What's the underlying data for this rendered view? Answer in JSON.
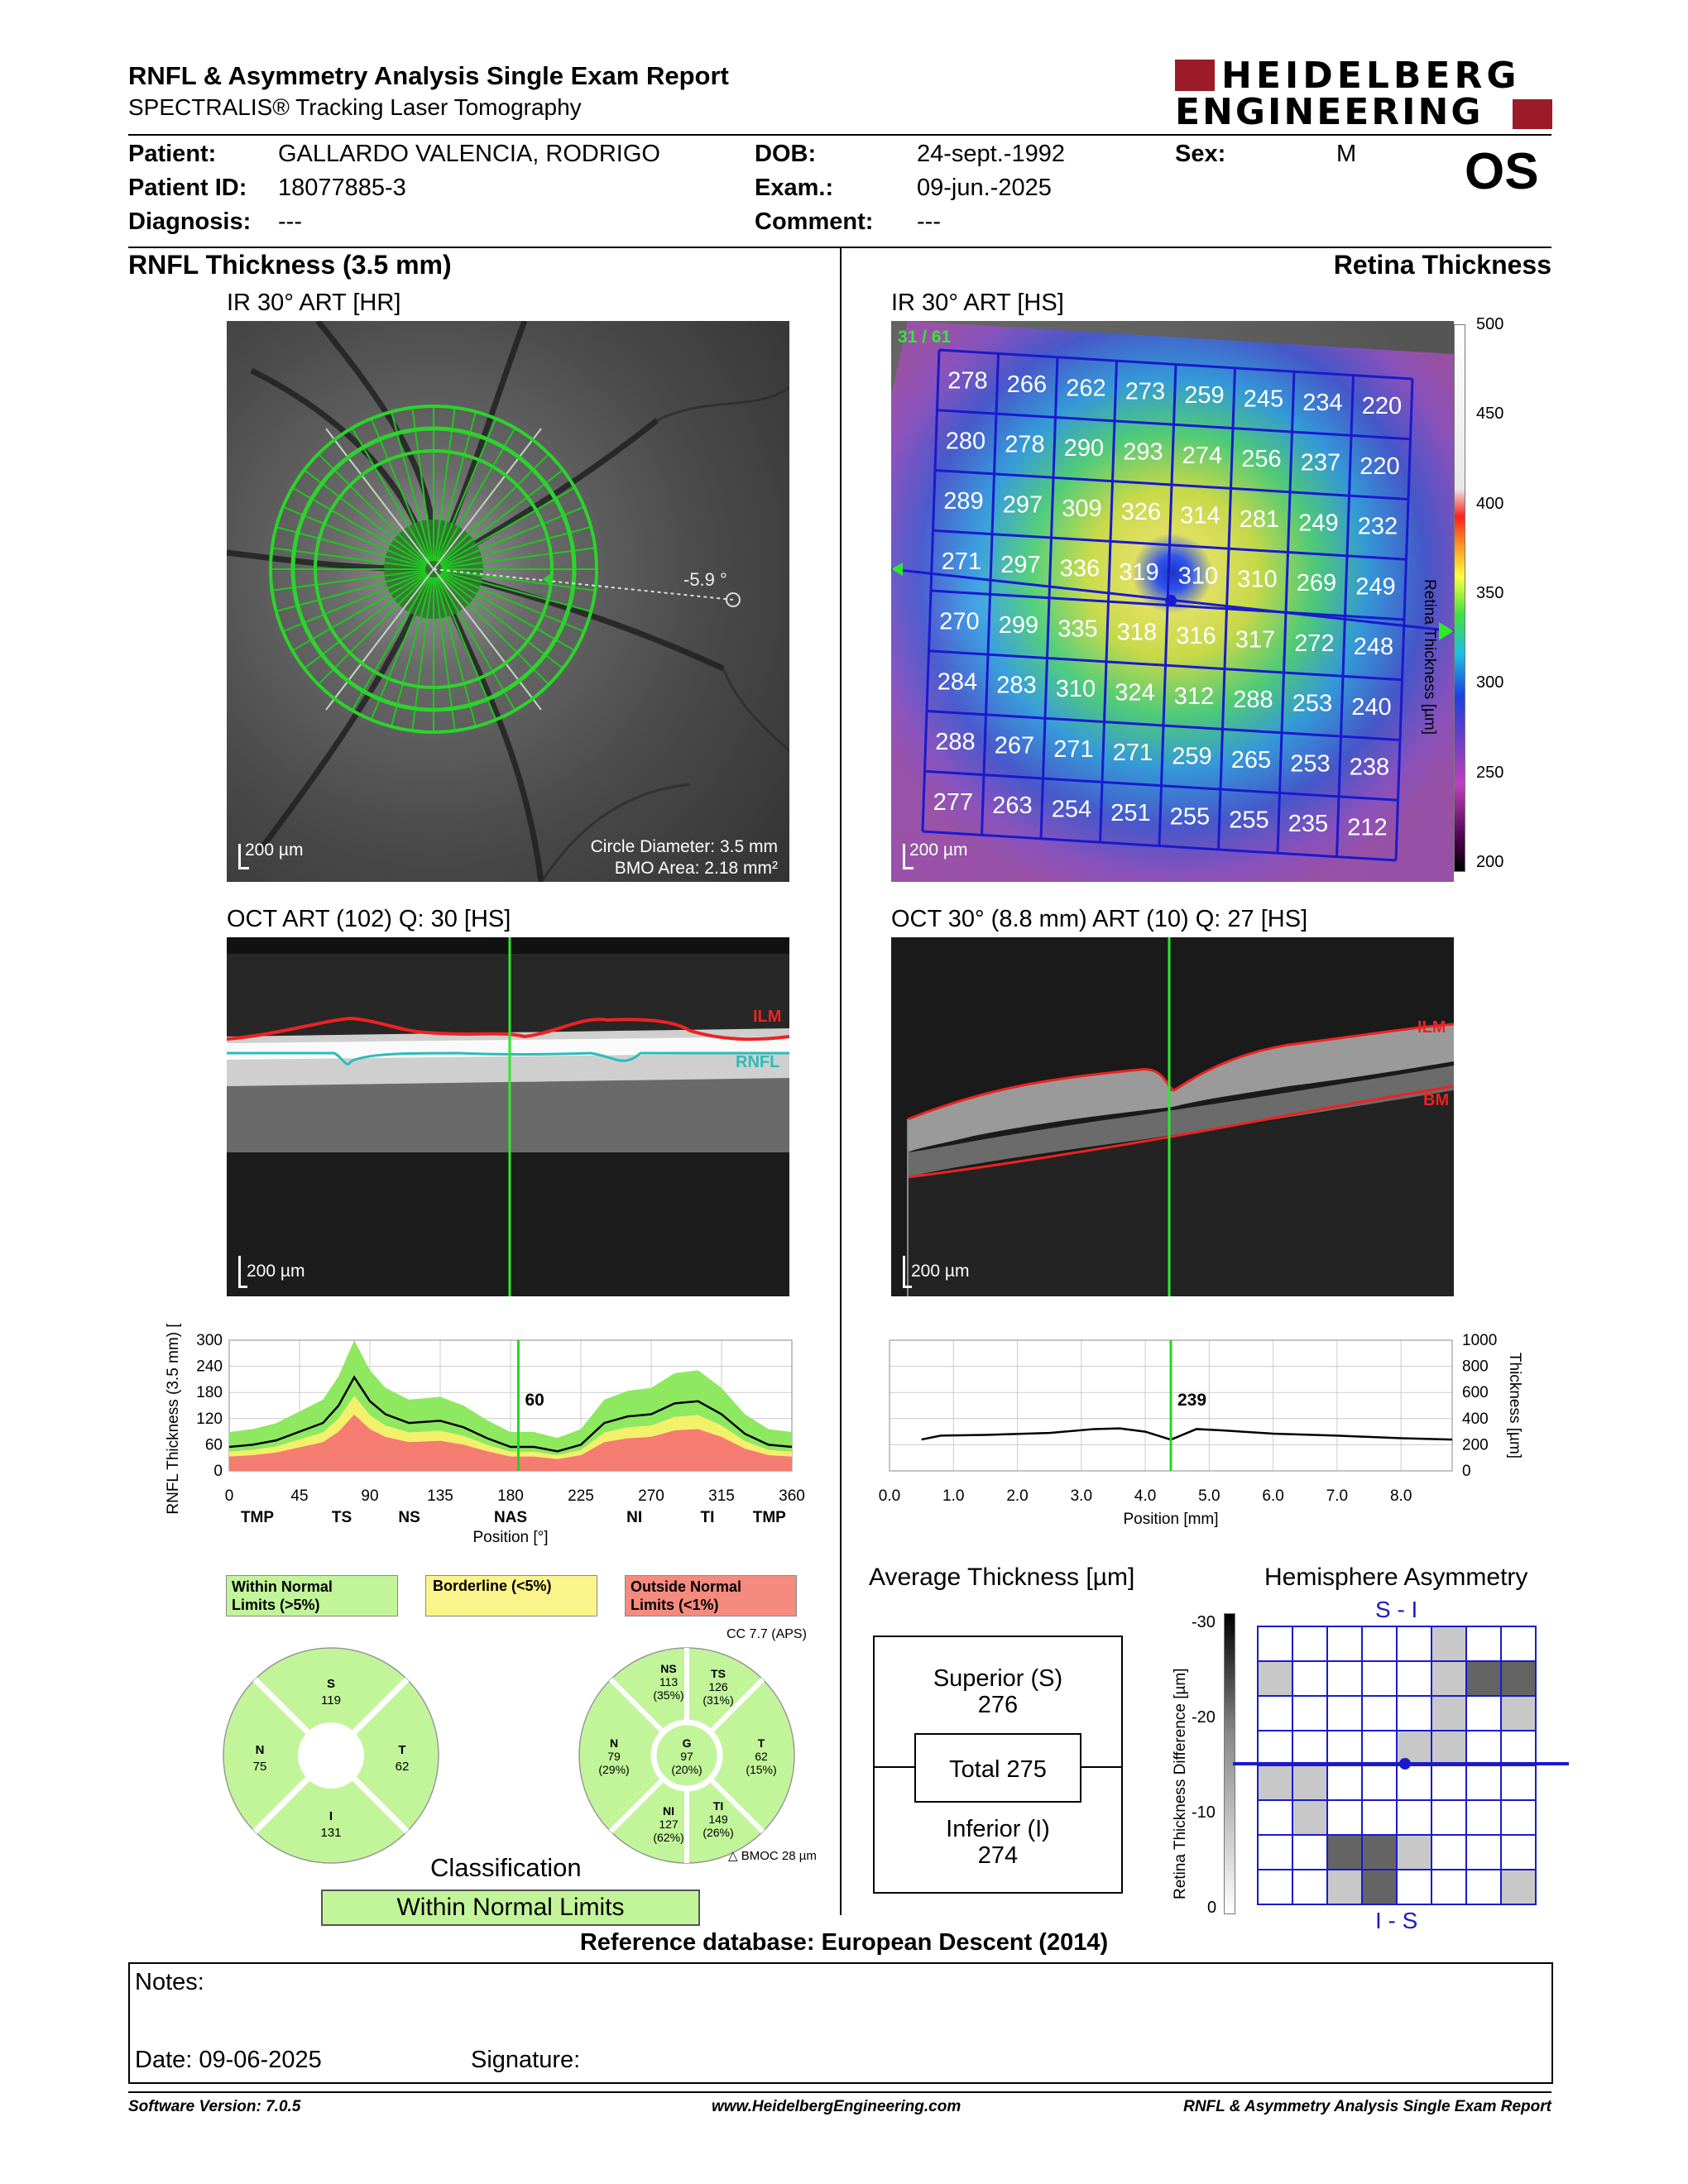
{
  "header": {
    "title": "RNFL & Asymmetry Analysis Single Exam Report",
    "subtitle": "SPECTRALIS® Tracking Laser Tomography",
    "logo_line1": "HEIDELBERG",
    "logo_line2": "ENGINEERING",
    "eye": "OS"
  },
  "patient": {
    "patient_label": "Patient:",
    "patient_value": "GALLARDO VALENCIA, RODRIGO",
    "id_label": "Patient ID:",
    "id_value": "18077885-3",
    "diag_label": "Diagnosis:",
    "diag_value": "---",
    "dob_label": "DOB:",
    "dob_value": "24-sept.-1992",
    "exam_label": "Exam.:",
    "exam_value": "09-jun.-2025",
    "comment_label": "Comment:",
    "comment_value": "---",
    "sex_label": "Sex:",
    "sex_value": "M"
  },
  "left": {
    "section_title": "RNFL Thickness (3.5 mm)",
    "ir_title": "IR 30° ART [HR]",
    "ir_scale": "200 µm",
    "ir_angle": "-5.9 °",
    "ir_circle": "Circle Diameter: 3.5 mm",
    "ir_bmo": "BMO Area: 2.18 mm²",
    "oct_title": "OCT ART (102) Q: 30 [HS]",
    "oct_scale": "200 µm",
    "oct_ilm": "ILM",
    "oct_rnfl": "RNFL",
    "chart_marker_value": "60",
    "legend": {
      "normal": "Within Normal Limits (>5%)",
      "borderline": "Borderline (<5%)",
      "outside": "Outside Normal Limits (<1%)"
    },
    "cc_label": "CC 7.7 (APS)",
    "sectors4": {
      "S": "119",
      "N": "75",
      "T": "62",
      "I": "131"
    },
    "sectors6": {
      "NS": "113",
      "NS_p": "(35%)",
      "TS": "126",
      "TS_p": "(31%)",
      "N": "79",
      "N_p": "(29%)",
      "G": "97",
      "G_p": "(20%)",
      "T": "62",
      "T_p": "(15%)",
      "NI": "127",
      "NI_p": "(62%)",
      "TI": "149",
      "TI_p": "(26%)"
    },
    "bmoc": "BMOC 28 µm",
    "classification_label": "Classification",
    "classification_value": "Within Normal Limits"
  },
  "right": {
    "section_title": "Retina Thickness",
    "ir_title": "IR 30° ART [HS]",
    "ir_scale": "200 µm",
    "ir_corner": "31 / 61",
    "colorbar_title": "Retina Thickness [µm]",
    "colorbar_ticks": [
      "500",
      "450",
      "400",
      "350",
      "300",
      "250",
      "200"
    ],
    "grid": [
      [
        "278",
        "266",
        "262",
        "273",
        "259",
        "245",
        "234",
        "220"
      ],
      [
        "280",
        "278",
        "290",
        "293",
        "274",
        "256",
        "237",
        "220"
      ],
      [
        "289",
        "297",
        "309",
        "326",
        "314",
        "281",
        "249",
        "232"
      ],
      [
        "271",
        "297",
        "336",
        "319",
        "310",
        "310",
        "269",
        "249"
      ],
      [
        "270",
        "299",
        "335",
        "318",
        "316",
        "317",
        "272",
        "248"
      ],
      [
        "284",
        "283",
        "310",
        "324",
        "312",
        "288",
        "253",
        "240"
      ],
      [
        "288",
        "267",
        "271",
        "271",
        "259",
        "265",
        "253",
        "238"
      ],
      [
        "277",
        "263",
        "254",
        "251",
        "255",
        "255",
        "235",
        "212"
      ]
    ],
    "oct_title": "OCT 30° (8.8 mm) ART (10) Q: 27 [HS]",
    "oct_scale": "200 µm",
    "oct_ilm": "ILM",
    "oct_bm": "BM",
    "chart_marker_value": "239",
    "avg_title": "Average Thickness [µm]",
    "superior_label": "Superior (S)",
    "superior_value": "276",
    "total_label": "Total 275",
    "inferior_label": "Inferior (I)",
    "inferior_value": "274",
    "asym_title": "Hemisphere Asymmetry",
    "asym_top": "S - I",
    "asym_bottom": "I - S",
    "asym_axis_title": "Retina Thickness Difference [µm]",
    "asym_ticks": [
      "-30",
      "-20",
      "-10",
      "0"
    ],
    "asym_grid": [
      [
        0,
        0,
        0,
        0,
        0,
        1,
        0,
        0
      ],
      [
        1,
        0,
        0,
        0,
        0,
        1,
        3,
        3
      ],
      [
        0,
        0,
        0,
        0,
        0,
        1,
        0,
        1
      ],
      [
        0,
        0,
        0,
        0,
        1,
        1,
        0,
        0
      ],
      [
        1,
        1,
        0,
        0,
        0,
        0,
        0,
        0
      ],
      [
        0,
        1,
        0,
        0,
        0,
        0,
        0,
        0
      ],
      [
        0,
        0,
        3,
        3,
        1,
        0,
        0,
        0
      ],
      [
        0,
        0,
        1,
        3,
        0,
        0,
        0,
        1
      ]
    ]
  },
  "chart_data": [
    {
      "type": "line",
      "title": "",
      "xlabel": "Position [°]",
      "ylabel": "RNFL Thickness (3.5 mm) [µm]",
      "xlim": [
        0,
        360
      ],
      "ylim": [
        0,
        300
      ],
      "xticks": [
        "0",
        "45",
        "90",
        "135",
        "180",
        "225",
        "270",
        "315",
        "360"
      ],
      "yticks": [
        "0",
        "60",
        "120",
        "180",
        "240",
        "300"
      ],
      "sector_labels": [
        "TMP",
        "TS",
        "NS",
        "NAS",
        "NI",
        "TI",
        "TMP"
      ],
      "x": [
        0,
        15,
        30,
        45,
        60,
        70,
        80,
        90,
        100,
        115,
        135,
        150,
        165,
        180,
        195,
        210,
        225,
        240,
        255,
        270,
        285,
        300,
        315,
        330,
        345,
        360
      ],
      "series": [
        {
          "name": "",
          "values": [
            55,
            60,
            70,
            90,
            110,
            150,
            215,
            160,
            130,
            110,
            115,
            100,
            75,
            55,
            55,
            45,
            60,
            110,
            125,
            130,
            155,
            160,
            130,
            85,
            60,
            55
          ]
        }
      ],
      "marker_x": 185,
      "marker_value": 60
    },
    {
      "type": "line",
      "title": "",
      "xlabel": "Position [mm]",
      "ylabel": "Thickness [µm]",
      "xlim": [
        0,
        8.8
      ],
      "ylim": [
        0,
        1000
      ],
      "xticks": [
        "0.0",
        "1.0",
        "2.0",
        "3.0",
        "4.0",
        "5.0",
        "6.0",
        "7.0",
        "8.0"
      ],
      "yticks": [
        "0",
        "200",
        "400",
        "600",
        "800",
        "1000"
      ],
      "x": [
        0.5,
        0.8,
        1.5,
        2.5,
        3.2,
        3.6,
        4.0,
        4.4,
        4.8,
        5.2,
        6.0,
        7.0,
        8.0,
        8.8
      ],
      "series": [
        {
          "name": "",
          "values": [
            240,
            270,
            275,
            290,
            320,
            325,
            300,
            239,
            320,
            310,
            285,
            270,
            250,
            240
          ]
        }
      ],
      "marker_x": 4.4,
      "marker_value": 239
    }
  ],
  "reference": "Reference database: European Descent (2014)",
  "notes": {
    "notes_label": "Notes:",
    "date_label": "Date: 09-06-2025",
    "signature_label": "Signature:"
  },
  "footer": {
    "software": "Software Version: 7.0.5",
    "website": "www.HeidelbergEngineering.com",
    "report": "RNFL & Asymmetry Analysis Single Exam Report"
  },
  "colors": {
    "brand_red": "#9b1b28",
    "normal_green": "#c2f59a",
    "border_yellow": "#fbf48a",
    "outside_red": "#f58b7e",
    "grid_blue": "#1a1acc"
  }
}
